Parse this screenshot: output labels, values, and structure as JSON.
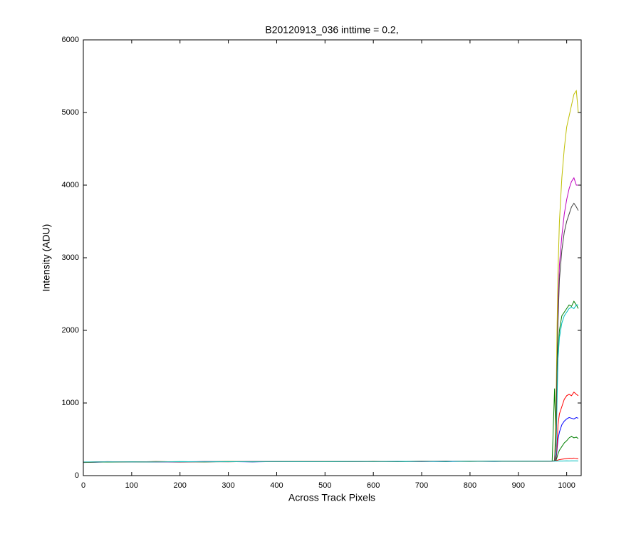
{
  "chart_data": {
    "type": "line",
    "title": "B20120913_036 inttime = 0.2,",
    "x_label": "Across Track Pixels",
    "y_label": "Intensity (ADU)",
    "xlim": [
      0,
      1030
    ],
    "ylim": [
      0,
      6000
    ],
    "xticks": [
      0,
      100,
      200,
      300,
      400,
      500,
      600,
      700,
      800,
      900,
      1000
    ],
    "yticks": [
      0,
      1000,
      2000,
      3000,
      4000,
      5000,
      6000
    ],
    "x": [
      0,
      50,
      100,
      150,
      200,
      250,
      300,
      350,
      400,
      450,
      500,
      550,
      600,
      650,
      700,
      750,
      800,
      850,
      900,
      950,
      960,
      970,
      975,
      978,
      980,
      982,
      985,
      990,
      995,
      1000,
      1005,
      1010,
      1015,
      1020,
      1024
    ],
    "series": [
      {
        "color": "#0000ff",
        "values": [
          180,
          188,
          186,
          191,
          188,
          190,
          192,
          189,
          193,
          191,
          194,
          192,
          195,
          193,
          196,
          194,
          197,
          195,
          198,
          196,
          198,
          200,
          200,
          220,
          350,
          500,
          600,
          700,
          750,
          780,
          800,
          790,
          780,
          800,
          790
        ]
      },
      {
        "color": "#008000",
        "values": [
          185,
          190,
          187,
          193,
          189,
          192,
          194,
          190,
          195,
          192,
          196,
          193,
          197,
          194,
          198,
          195,
          199,
          196,
          200,
          197,
          199,
          201,
          1200,
          400,
          1200,
          1700,
          2000,
          2200,
          2250,
          2300,
          2350,
          2330,
          2400,
          2350,
          2300
        ]
      },
      {
        "color": "#ff0000",
        "values": [
          183,
          191,
          188,
          190,
          191,
          189,
          193,
          192,
          192,
          194,
          193,
          195,
          194,
          196,
          195,
          197,
          196,
          198,
          197,
          199,
          199,
          200,
          202,
          250,
          400,
          700,
          850,
          950,
          1050,
          1100,
          1120,
          1100,
          1150,
          1120,
          1100
        ]
      },
      {
        "color": "#00bfbf",
        "values": [
          186,
          187,
          190,
          189,
          192,
          191,
          190,
          194,
          191,
          193,
          195,
          194,
          196,
          195,
          197,
          196,
          198,
          197,
          199,
          198,
          200,
          201,
          203,
          300,
          1000,
          1600,
          1900,
          2100,
          2200,
          2250,
          2300,
          2320,
          2300,
          2350,
          2350
        ]
      },
      {
        "color": "#bf00bf",
        "values": [
          184,
          189,
          191,
          188,
          190,
          193,
          191,
          193,
          194,
          192,
          194,
          196,
          195,
          197,
          194,
          198,
          197,
          199,
          198,
          200,
          200,
          202,
          204,
          700,
          1700,
          2300,
          2900,
          3300,
          3600,
          3800,
          3950,
          4050,
          4100,
          4000,
          4000
        ]
      },
      {
        "color": "#bfbf00",
        "values": [
          182,
          190,
          189,
          192,
          191,
          190,
          194,
          191,
          193,
          195,
          192,
          196,
          194,
          196,
          197,
          195,
          198,
          199,
          197,
          200,
          201,
          202,
          205,
          900,
          2000,
          2800,
          3500,
          4100,
          4500,
          4800,
          4950,
          5100,
          5250,
          5300,
          5000
        ]
      },
      {
        "color": "#404040",
        "values": [
          187,
          188,
          190,
          191,
          189,
          192,
          191,
          192,
          195,
          193,
          195,
          193,
          196,
          196,
          195,
          198,
          196,
          198,
          199,
          199,
          200,
          201,
          203,
          600,
          1500,
          2100,
          2700,
          3100,
          3350,
          3500,
          3600,
          3700,
          3750,
          3700,
          3650
        ]
      },
      {
        "color": "#008000",
        "values": [
          181,
          189,
          187,
          190,
          192,
          189,
          192,
          191,
          191,
          194,
          193,
          194,
          196,
          193,
          196,
          197,
          195,
          198,
          198,
          197,
          199,
          200,
          202,
          210,
          250,
          300,
          350,
          400,
          450,
          480,
          520,
          540,
          520,
          530,
          510
        ]
      },
      {
        "color": "#ff0000",
        "values": [
          184,
          192,
          186,
          192,
          190,
          191,
          190,
          193,
          192,
          193,
          196,
          193,
          195,
          195,
          198,
          196,
          197,
          196,
          200,
          198,
          200,
          199,
          201,
          205,
          210,
          215,
          220,
          225,
          230,
          235,
          240,
          238,
          242,
          236,
          232
        ]
      },
      {
        "color": "#00bfbf",
        "values": [
          186,
          190,
          188,
          189,
          191,
          190,
          191,
          192,
          194,
          192,
          193,
          195,
          194,
          196,
          196,
          195,
          197,
          197,
          198,
          199,
          199,
          200,
          200,
          201,
          200,
          201,
          202,
          201,
          202,
          203,
          202,
          203,
          204,
          203,
          202
        ]
      }
    ]
  }
}
